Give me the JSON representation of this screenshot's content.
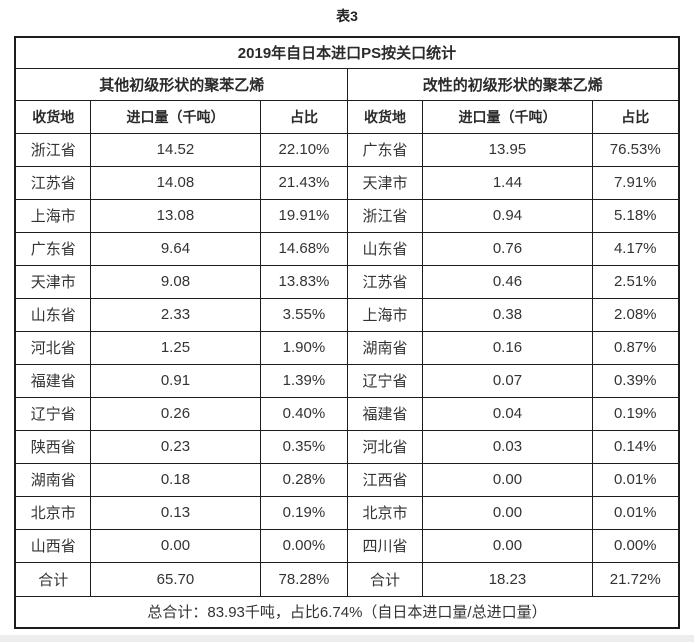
{
  "caption": "表3",
  "table": {
    "title": "2019年自日本进口PS按关口统计",
    "left": {
      "header": "其他初级形状的聚苯乙烯",
      "columns": [
        "收货地",
        "进口量（千吨）",
        "占比"
      ],
      "rows": [
        [
          "浙江省",
          "14.52",
          "22.10%"
        ],
        [
          "江苏省",
          "14.08",
          "21.43%"
        ],
        [
          "上海市",
          "13.08",
          "19.91%"
        ],
        [
          "广东省",
          "9.64",
          "14.68%"
        ],
        [
          "天津市",
          "9.08",
          "13.83%"
        ],
        [
          "山东省",
          "2.33",
          "3.55%"
        ],
        [
          "河北省",
          "1.25",
          "1.90%"
        ],
        [
          "福建省",
          "0.91",
          "1.39%"
        ],
        [
          "辽宁省",
          "0.26",
          "0.40%"
        ],
        [
          "陕西省",
          "0.23",
          "0.35%"
        ],
        [
          "湖南省",
          "0.18",
          "0.28%"
        ],
        [
          "北京市",
          "0.13",
          "0.19%"
        ],
        [
          "山西省",
          "0.00",
          "0.00%"
        ]
      ],
      "total": [
        "合计",
        "65.70",
        "78.28%"
      ]
    },
    "right": {
      "header": "改性的初级形状的聚苯乙烯",
      "columns": [
        "收货地",
        "进口量（千吨）",
        "占比"
      ],
      "rows": [
        [
          "广东省",
          "13.95",
          "76.53%"
        ],
        [
          "天津市",
          "1.44",
          "7.91%"
        ],
        [
          "浙江省",
          "0.94",
          "5.18%"
        ],
        [
          "山东省",
          "0.76",
          "4.17%"
        ],
        [
          "江苏省",
          "0.46",
          "2.51%"
        ],
        [
          "上海市",
          "0.38",
          "2.08%"
        ],
        [
          "湖南省",
          "0.16",
          "0.87%"
        ],
        [
          "辽宁省",
          "0.07",
          "0.39%"
        ],
        [
          "福建省",
          "0.04",
          "0.19%"
        ],
        [
          "河北省",
          "0.03",
          "0.14%"
        ],
        [
          "江西省",
          "0.00",
          "0.01%"
        ],
        [
          "北京市",
          "0.00",
          "0.01%"
        ],
        [
          "四川省",
          "0.00",
          "0.00%"
        ]
      ],
      "total": [
        "合计",
        "18.23",
        "21.72%"
      ]
    },
    "footer": "总合计：83.93千吨，占比6.74%（自日本进口量/总进口量）"
  }
}
